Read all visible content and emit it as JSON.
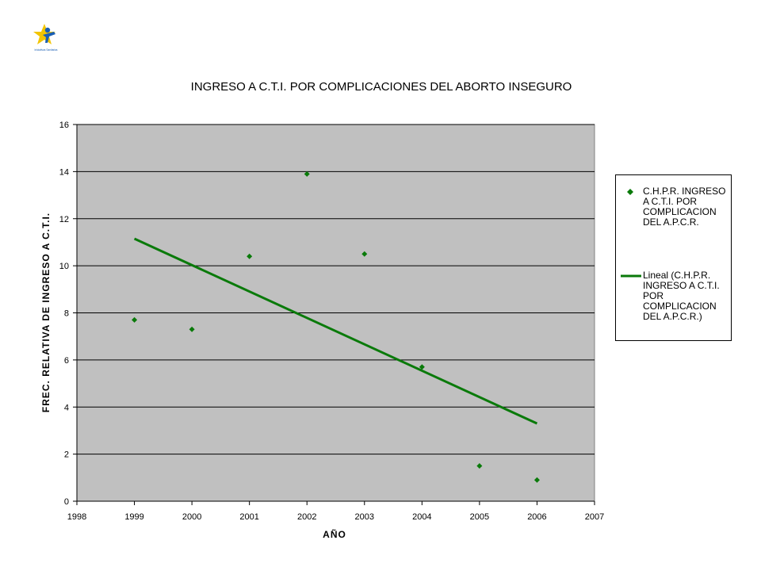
{
  "colors": {
    "plot_background": "#c0c0c0",
    "series": "#0a7a0a",
    "gridline": "#000000"
  },
  "logo": {
    "icon": "star-person-logo-icon",
    "caption": "Iniciativas Sanitarias"
  },
  "chart_data": {
    "type": "scatter",
    "title": "INGRESO A C.T.I. POR COMPLICACIONES DEL ABORTO INSEGURO",
    "xlabel": "AÑO",
    "ylabel": "FREC. RELATIVA DE INGRESO A C.T.I.",
    "xlim": [
      1998,
      2007
    ],
    "ylim": [
      0,
      16
    ],
    "x_ticks": [
      "1998",
      "1999",
      "2000",
      "2001",
      "2002",
      "2003",
      "2004",
      "2005",
      "2006",
      "2007"
    ],
    "y_ticks": [
      "0",
      "2",
      "4",
      "6",
      "8",
      "10",
      "12",
      "14",
      "16"
    ],
    "grid": "horizontal",
    "legend_position": "right",
    "series": [
      {
        "name": "C.H.P.R. INGRESO A C.T.I. POR COMPLICACION DEL A.P.C.R.",
        "marker": "diamond",
        "x": [
          1999,
          2000,
          2001,
          2002,
          2003,
          2004,
          2005,
          2006
        ],
        "y": [
          7.7,
          7.3,
          10.4,
          13.9,
          10.5,
          5.7,
          1.5,
          0.9
        ]
      }
    ],
    "trendline": {
      "name": "Lineal (C.H.P.R. INGRESO A C.T.I. POR COMPLICACION DEL A.P.C.R.)",
      "type": "linear",
      "x": [
        1999,
        2006
      ],
      "y": [
        11.15,
        3.3
      ]
    }
  }
}
